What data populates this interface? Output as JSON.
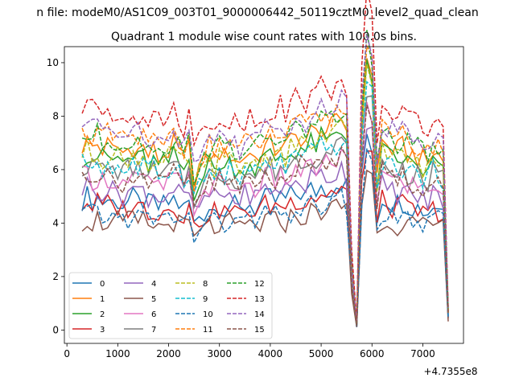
{
  "chart_data": {
    "type": "line",
    "suptitle": "n file: modeM0/AS1C09_003T01_9000006442_50119cztM0_level2_quad_clean",
    "title": "Quadrant 1 module wise count rates with 100.0s bins.",
    "xlabel": "",
    "ylabel": "",
    "x_offset_label": "+4.7355e8",
    "xlim": [
      -50,
      7800
    ],
    "ylim": [
      -0.5,
      10.6
    ],
    "xticks": [
      0,
      1000,
      2000,
      3000,
      4000,
      5000,
      6000,
      7000
    ],
    "xtick_labels": [
      "0",
      "1000",
      "2000",
      "3000",
      "4000",
      "5000",
      "6000",
      "7000"
    ],
    "yticks": [
      0,
      2,
      4,
      6,
      8,
      10
    ],
    "ytick_labels": [
      "0",
      "2",
      "4",
      "6",
      "8",
      "10"
    ],
    "legend_location": "lower left",
    "x": [
      300,
      400,
      500,
      600,
      700,
      800,
      900,
      1000,
      1100,
      1200,
      1300,
      1400,
      1500,
      1600,
      1700,
      1800,
      1900,
      2000,
      2100,
      2200,
      2300,
      2400,
      2500,
      2600,
      2700,
      2800,
      2900,
      3000,
      3100,
      3200,
      3300,
      3400,
      3500,
      3600,
      3700,
      3800,
      3900,
      4000,
      4100,
      4200,
      4300,
      4400,
      4500,
      4600,
      4700,
      4800,
      4900,
      5000,
      5100,
      5200,
      5300,
      5400,
      5500,
      5600,
      5700,
      5800,
      5900,
      6000,
      6100,
      6200,
      6300,
      6400,
      6500,
      6600,
      6700,
      6800,
      6900,
      7000,
      7100,
      7200,
      7300,
      7400,
      7500
    ],
    "envelope": [
      1.0,
      1.02,
      0.99,
      1.01,
      0.98,
      1.0,
      0.97,
      0.99,
      0.96,
      0.98,
      1.0,
      0.97,
      0.99,
      0.95,
      0.97,
      0.93,
      0.95,
      0.97,
      1.0,
      0.96,
      0.92,
      0.98,
      0.8,
      0.88,
      0.9,
      0.95,
      0.92,
      0.97,
      0.93,
      0.96,
      0.94,
      0.9,
      0.95,
      0.97,
      0.93,
      0.96,
      0.99,
      1.0,
      0.98,
      1.01,
      0.99,
      1.02,
      1.04,
      1.05,
      1.03,
      1.07,
      1.06,
      1.1,
      1.08,
      1.09,
      1.12,
      1.14,
      1.1,
      0.35,
      0.03,
      1.15,
      1.5,
      1.4,
      0.85,
      1.02,
      1.0,
      0.98,
      0.97,
      0.99,
      0.96,
      0.95,
      0.94,
      0.92,
      0.9,
      0.96,
      0.95,
      0.92,
      0.1
    ],
    "series": [
      {
        "name": "0",
        "base": 4.9,
        "color": "#1f77b4",
        "dash": false
      },
      {
        "name": "1",
        "base": 6.9,
        "color": "#ff7f0e",
        "dash": false
      },
      {
        "name": "2",
        "base": 6.5,
        "color": "#2ca02c",
        "dash": false
      },
      {
        "name": "3",
        "base": 4.7,
        "color": "#d62728",
        "dash": false
      },
      {
        "name": "4",
        "base": 5.3,
        "color": "#9467bd",
        "dash": false
      },
      {
        "name": "5",
        "base": 4.1,
        "color": "#8c564b",
        "dash": false
      },
      {
        "name": "6",
        "base": 5.7,
        "color": "#e377c2",
        "dash": false
      },
      {
        "name": "7",
        "base": 6.1,
        "color": "#7f7f7f",
        "dash": false
      },
      {
        "name": "8",
        "base": 6.6,
        "color": "#bcbd22",
        "dash": true
      },
      {
        "name": "9",
        "base": 6.2,
        "color": "#17becf",
        "dash": true
      },
      {
        "name": "10",
        "base": 4.3,
        "color": "#1f77b4",
        "dash": true
      },
      {
        "name": "11",
        "base": 7.3,
        "color": "#ff7f0e",
        "dash": true
      },
      {
        "name": "12",
        "base": 7.2,
        "color": "#2ca02c",
        "dash": true
      },
      {
        "name": "13",
        "base": 8.3,
        "color": "#d62728",
        "dash": true
      },
      {
        "name": "14",
        "base": 7.6,
        "color": "#9467bd",
        "dash": true
      },
      {
        "name": "15",
        "base": 5.8,
        "color": "#8c564b",
        "dash": true
      }
    ]
  }
}
